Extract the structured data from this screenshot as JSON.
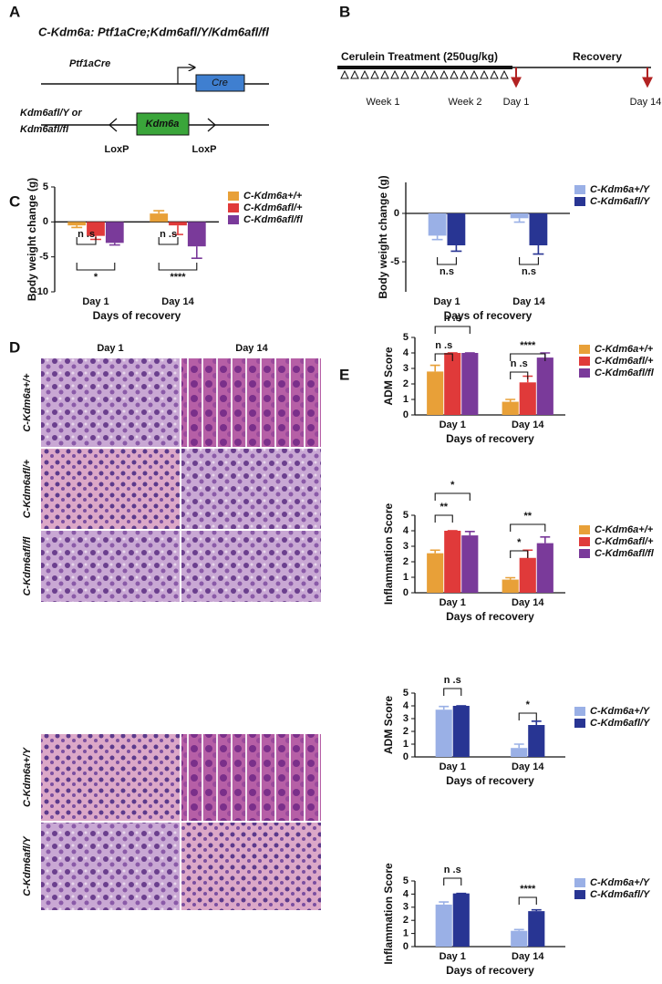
{
  "figure": {
    "panel_labels": [
      "A",
      "B",
      "C",
      "D",
      "E"
    ],
    "a": {
      "title": "C-Kdm6a: Ptf1aCre;Kdm6afl/Y/Kdm6afl/fl",
      "promoter": "Ptf1aCre",
      "gene": "Cre",
      "allele": [
        "Kdm6afl/Y or",
        "Kdm6afl/fl"
      ],
      "exon": "Kdm6a",
      "loxp": [
        "LoxP",
        "LoxP"
      ]
    },
    "b": {
      "treatment": "Cerulein Treatment (250ug/kg)",
      "recovery": "Recovery",
      "weeks": [
        "Week 1",
        "Week 2"
      ],
      "days": [
        "Day 1",
        "Day 14"
      ]
    },
    "d": {
      "columns": [
        "Day 1",
        "Day 14"
      ],
      "rows": [
        "C-Kdm6a+/+",
        "C-Kdm6afl/+",
        "C-Kdm6afl/fl",
        "C-Kdm6a+/Y",
        "C-Kdm6afl/Y"
      ]
    }
  },
  "chart_data": [
    {
      "type": "bar",
      "ylabel": "Body weight change (g)",
      "xlabel": "Days of recovery",
      "categories": [
        "Day 1",
        "Day 14"
      ],
      "series": [
        {
          "name": "C-Kdm6a+/+",
          "color": "#e8a038",
          "values": [
            -0.5,
            1.2
          ],
          "errors": [
            0.3,
            0.4
          ]
        },
        {
          "name": "C-Kdm6afl/+",
          "color": "#e03a3a",
          "values": [
            -2,
            -0.5
          ],
          "errors": [
            0.5,
            1.3
          ]
        },
        {
          "name": "C-Kdm6afl/fl",
          "color": "#7a3a9a",
          "values": [
            -3,
            -3.5
          ],
          "errors": [
            0.3,
            1.7
          ]
        }
      ],
      "ylim": [
        -10,
        5
      ],
      "yticks": [
        -10,
        -5,
        0,
        5
      ],
      "legend": "right",
      "annotations": [
        "n .s",
        "*",
        "n .s",
        "****"
      ]
    },
    {
      "type": "bar",
      "ylabel": "Body weight change (g)",
      "xlabel": "Days of recovery",
      "categories": [
        "Day 1",
        "Day 14"
      ],
      "series": [
        {
          "name": "C-Kdm6a+/Y",
          "color": "#9ab0e6",
          "values": [
            -2.3,
            -0.5
          ],
          "errors": [
            0.4,
            0.4
          ]
        },
        {
          "name": "C-Kdm6afl/Y",
          "color": "#283593",
          "values": [
            -3.3,
            -3.3
          ],
          "errors": [
            0.6,
            0.9
          ]
        }
      ],
      "ylim": [
        -8.1,
        3.2
      ],
      "yticks": [
        -5,
        0
      ],
      "legend": "right",
      "annotations": [
        "n.s",
        "n.s"
      ]
    },
    {
      "type": "bar",
      "ylabel": "ADM Score",
      "xlabel": "Days of recovery",
      "categories": [
        "Day 1",
        "Day 14"
      ],
      "series": [
        {
          "name": "C-Kdm6a+/+",
          "color": "#e8a038",
          "values": [
            2.8,
            0.85
          ],
          "errors": [
            0.4,
            0.15
          ]
        },
        {
          "name": "C-Kdm6afl/+",
          "color": "#e03a3a",
          "values": [
            4,
            2.1
          ],
          "errors": [
            0,
            0.4
          ]
        },
        {
          "name": "C-Kdm6afl/fl",
          "color": "#7a3a9a",
          "values": [
            4,
            3.7
          ],
          "errors": [
            0,
            0.3
          ]
        }
      ],
      "ylim": [
        0,
        5
      ],
      "yticks": [
        0,
        1,
        2,
        3,
        4,
        5
      ],
      "legend": "right",
      "annotations": [
        "n .s",
        "n .s",
        "****",
        "n .s"
      ]
    },
    {
      "type": "bar",
      "ylabel": "Inflammation Score",
      "xlabel": "Days of recovery",
      "categories": [
        "Day 1",
        "Day 14"
      ],
      "series": [
        {
          "name": "C-Kdm6a+/+",
          "color": "#e8a038",
          "values": [
            2.55,
            0.85
          ],
          "errors": [
            0.2,
            0.12
          ]
        },
        {
          "name": "C-Kdm6afl/+",
          "color": "#e03a3a",
          "values": [
            4,
            2.25
          ],
          "errors": [
            0,
            0.5
          ]
        },
        {
          "name": "C-Kdm6afl/fl",
          "color": "#7a3a9a",
          "values": [
            3.7,
            3.2
          ],
          "errors": [
            0.25,
            0.4
          ]
        }
      ],
      "ylim": [
        0,
        5
      ],
      "yticks": [
        0,
        1,
        2,
        3,
        4,
        5
      ],
      "legend": "right",
      "annotations": [
        "*",
        "**",
        "**",
        "*"
      ]
    },
    {
      "type": "bar",
      "ylabel": "ADM Score",
      "xlabel": "Days of recovery",
      "categories": [
        "Day 1",
        "Day 14"
      ],
      "series": [
        {
          "name": "C-Kdm6a+/Y",
          "color": "#9ab0e6",
          "values": [
            3.7,
            0.7
          ],
          "errors": [
            0.25,
            0.3
          ]
        },
        {
          "name": "C-Kdm6afl/Y",
          "color": "#283593",
          "values": [
            4,
            2.5
          ],
          "errors": [
            0,
            0.3
          ]
        }
      ],
      "ylim": [
        0,
        5
      ],
      "yticks": [
        0,
        1,
        2,
        3,
        4,
        5
      ],
      "legend": "right",
      "annotations": [
        "n .s",
        "*"
      ]
    },
    {
      "type": "bar",
      "ylabel": "Inflammation Score",
      "xlabel": "Days of recovery",
      "categories": [
        "Day 1",
        "Day 14"
      ],
      "series": [
        {
          "name": "C-Kdm6a+/Y",
          "color": "#9ab0e6",
          "values": [
            3.2,
            1.2
          ],
          "errors": [
            0.2,
            0.1
          ]
        },
        {
          "name": "C-Kdm6afl/Y",
          "color": "#283593",
          "values": [
            4.05,
            2.7
          ],
          "errors": [
            0,
            0.1
          ]
        }
      ],
      "ylim": [
        0,
        5
      ],
      "yticks": [
        0,
        1,
        2,
        3,
        4,
        5
      ],
      "legend": "right",
      "annotations": [
        "n .s",
        "****"
      ]
    }
  ]
}
